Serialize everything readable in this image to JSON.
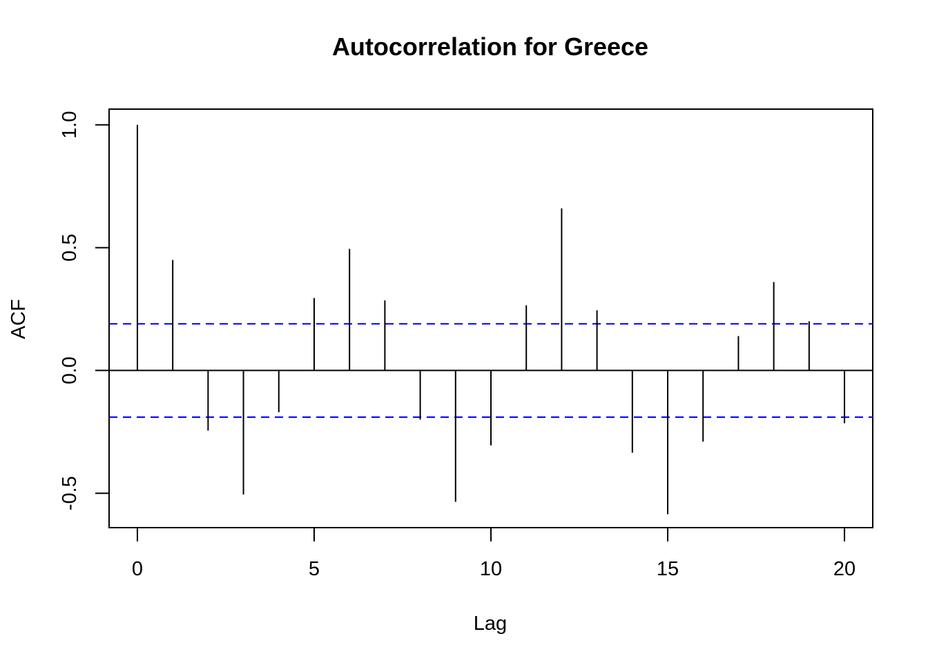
{
  "chart_data": {
    "type": "bar",
    "title": "Autocorrelation for Greece",
    "xlabel": "Lag",
    "ylabel": "ACF",
    "x": [
      0,
      1,
      2,
      3,
      4,
      5,
      6,
      7,
      8,
      9,
      10,
      11,
      12,
      13,
      14,
      15,
      16,
      17,
      18,
      19,
      20
    ],
    "series": [
      {
        "values": [
          1.0,
          0.45,
          -0.245,
          -0.505,
          -0.17,
          0.295,
          0.495,
          0.285,
          -0.2,
          -0.535,
          -0.305,
          0.265,
          0.66,
          0.245,
          -0.335,
          -0.585,
          -0.29,
          0.14,
          0.36,
          0.2,
          -0.215
        ]
      }
    ],
    "confidence_bounds": [
      0.19,
      -0.19
    ],
    "xlim": [
      -0.8,
      20.8
    ],
    "ylim": [
      -0.64,
      1.064
    ],
    "x_ticks": [
      0,
      5,
      10,
      15,
      20
    ],
    "x_tick_labels": [
      "0",
      "5",
      "10",
      "15",
      "20"
    ],
    "y_ticks": [
      -0.5,
      0.0,
      0.5,
      1.0
    ],
    "y_tick_labels": [
      "-0.5",
      "0.0",
      "0.5",
      "1.0"
    ],
    "grid": false,
    "colors": {
      "bars": "#000000",
      "confidence": "#0000ff",
      "zero_line": "#000000",
      "frame": "#000000"
    }
  }
}
